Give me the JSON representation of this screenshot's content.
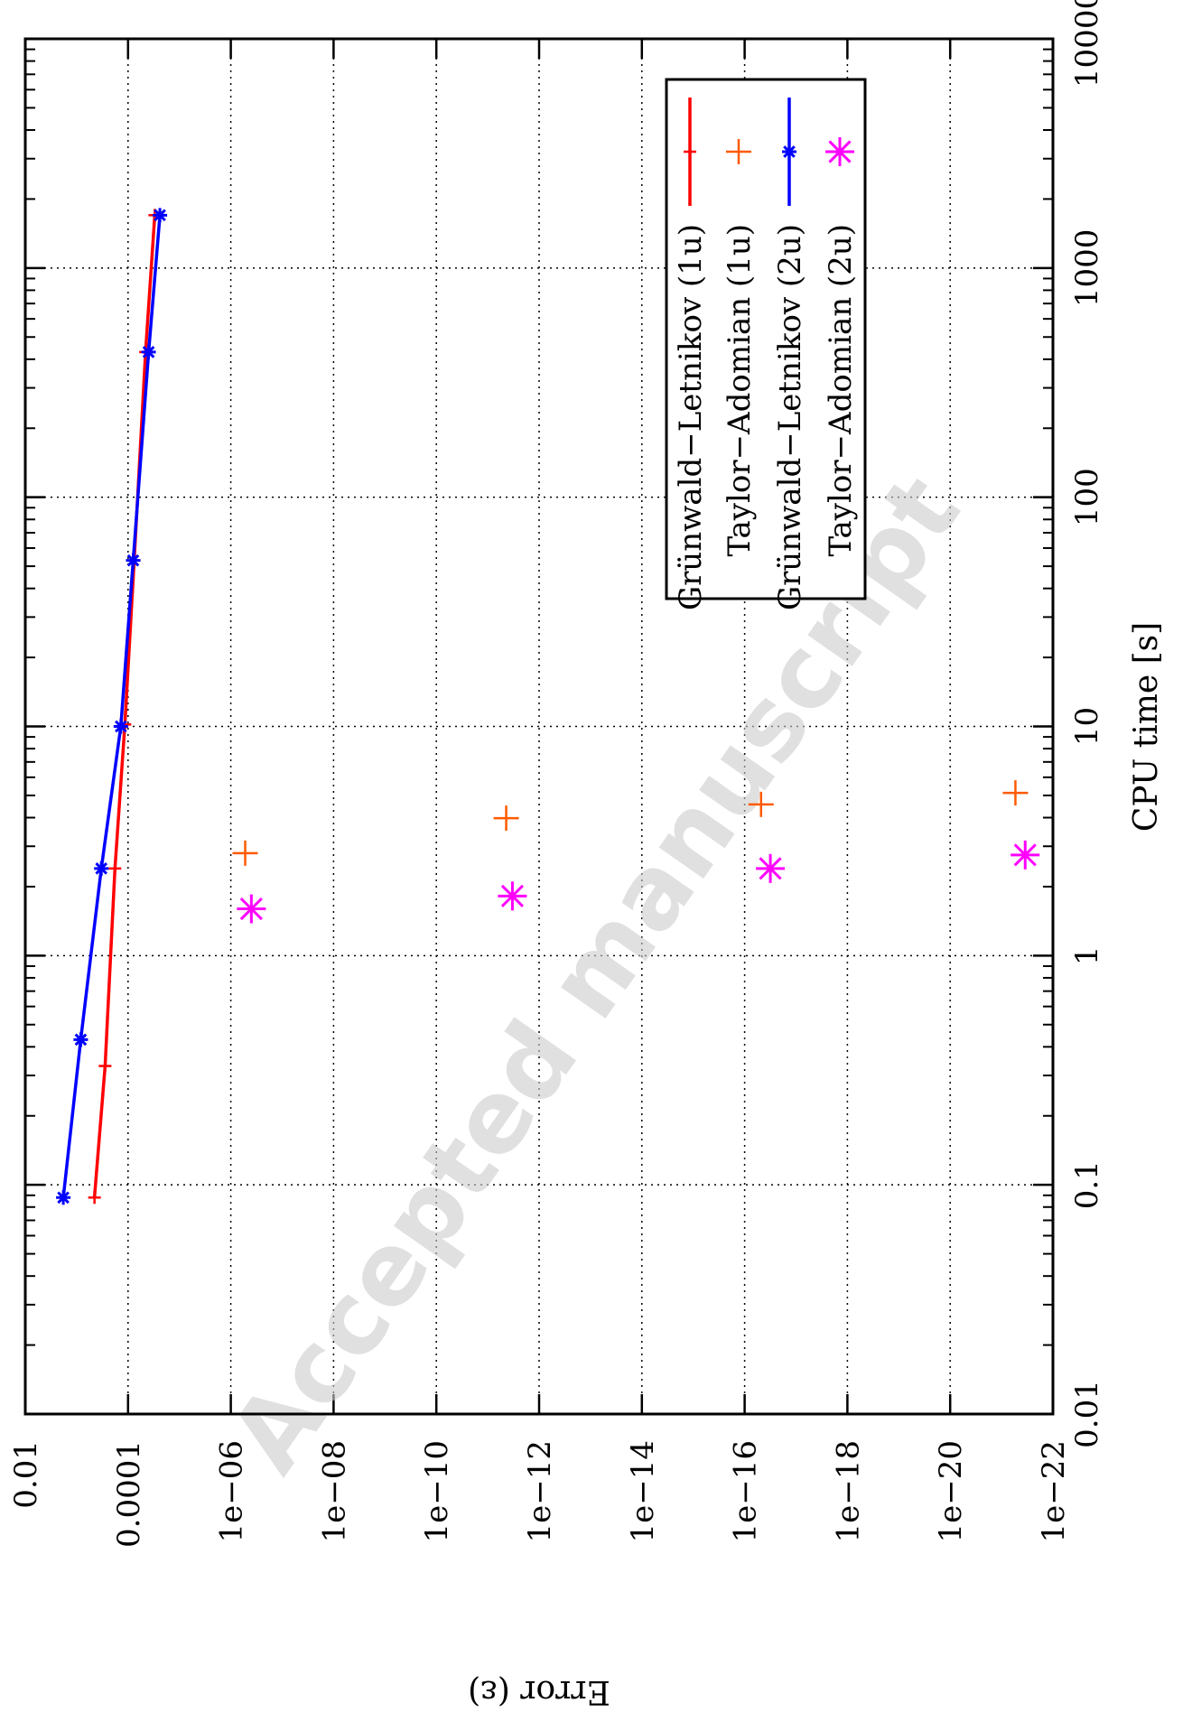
{
  "watermark": "Accepted manuscript",
  "chart_data": {
    "type": "line",
    "xlabel": "CPU time [s]",
    "ylabel": "Error (ε)",
    "xscale": "log",
    "yscale": "log",
    "xlim": [
      0.01,
      10000
    ],
    "ylim": [
      1e-22,
      0.01
    ],
    "grid": true,
    "legend_position": "top-right",
    "x_ticks": [
      "0.01",
      "0.1",
      "1",
      "10",
      "100",
      "1000",
      "10000"
    ],
    "y_ticks": [
      "0.01",
      "0.0001",
      "1e−06",
      "1e−08",
      "1e−10",
      "1e−12",
      "1e−14",
      "1e−16",
      "1e−18",
      "1e−20",
      "1e−22"
    ],
    "series": [
      {
        "name": "Grünwald−Letnikov (1u)",
        "style": "line+plus",
        "color": "#ff0000",
        "x": [
          0.088,
          0.33,
          2.4,
          10.2,
          53,
          430,
          1700
        ],
        "y": [
          0.00045,
          0.00028,
          0.00018,
          0.000115,
          7.59e-05,
          4.57e-05,
          3.02e-05
        ]
      },
      {
        "name": "Taylor−Adomian (1u)",
        "style": "plus",
        "color": "#ff5a00",
        "x": [
          2.8,
          3.98,
          4.57,
          5.13
        ],
        "y": [
          5.25e-07,
          4.37e-12,
          4.79e-17,
          5.37e-22
        ]
      },
      {
        "name": "Grünwald−Letnikov (2u)",
        "style": "line+star",
        "color": "#0000ff",
        "x": [
          0.088,
          0.43,
          2.4,
          10.0,
          53,
          430,
          1700
        ],
        "y": [
          0.00182,
          0.000832,
          0.000331,
          0.000138,
          7.94e-05,
          3.98e-05,
          2.4e-05
        ]
      },
      {
        "name": "Taylor−Adomian (2u)",
        "style": "star",
        "color": "#ff00ff",
        "x": [
          1.6,
          1.82,
          2.4,
          2.75
        ],
        "y": [
          3.98e-07,
          3.31e-12,
          3.16e-17,
          3.47e-22
        ]
      }
    ]
  }
}
